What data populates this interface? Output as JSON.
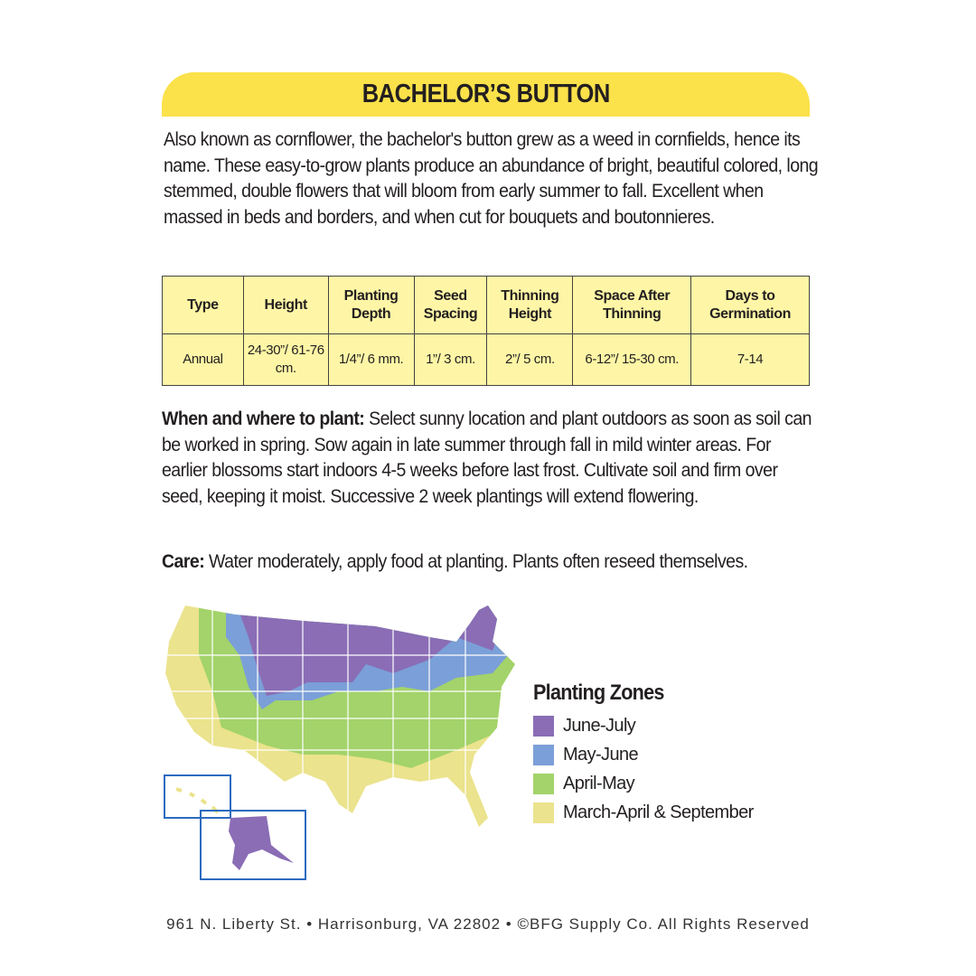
{
  "title": "BACHELOR’S BUTTON",
  "intro": "Also known as cornflower, the bachelor's button grew as a weed in cornfields, hence its name. These easy-to-grow plants produce an abundance of bright, beautiful colored, long stemmed, double flowers that will bloom from early summer to fall. Excellent when massed in beds and borders, and when cut for bouquets and boutonnieres.",
  "table": {
    "headers": [
      "Type",
      "Height",
      "Planting Depth",
      "Seed Spacing",
      "Thinning Height",
      "Space After Thinning",
      "Days to Germination"
    ],
    "values": [
      "Annual",
      "24-30”/ 61-76 cm.",
      "1/4”/ 6 mm.",
      "1”/ 3 cm.",
      "2”/ 5 cm.",
      "6-12”/ 15-30 cm.",
      "7-14"
    ]
  },
  "when": {
    "label": "When and where to plant:",
    "text": " Select sunny location and plant outdoors as soon as soil can be worked in spring. Sow again in late summer through fall in mild winter areas. For earlier blossoms start indoors 4-5 weeks before last frost. Cultivate soil and firm over seed, keeping it moist. Successive 2 week plantings will extend flowering."
  },
  "care": {
    "label": "Care:",
    "text": " Water moderately, apply food at planting. Plants often reseed themselves."
  },
  "legend": {
    "title": "Planting Zones",
    "items": [
      {
        "label": "June-July",
        "color": "#8a6db5"
      },
      {
        "label": "May-June",
        "color": "#7b9fd8"
      },
      {
        "label": "April-May",
        "color": "#a3d36a"
      },
      {
        "label": "March-April & September",
        "color": "#ebe38d"
      }
    ]
  },
  "footer": "961 N. Liberty St. • Harrisonburg, VA 22802 • ©BFG Supply Co. All Rights Reserved"
}
